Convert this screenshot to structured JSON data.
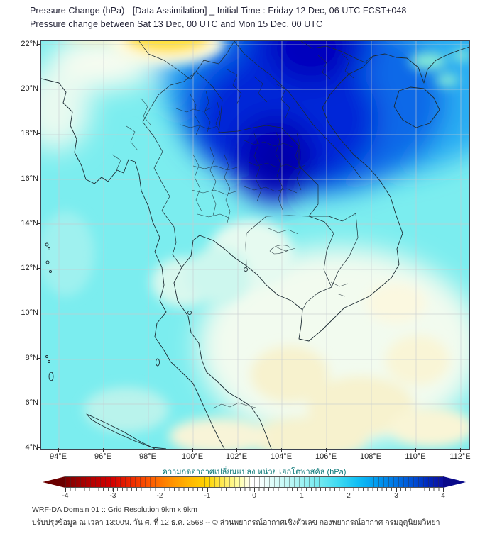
{
  "header": {
    "line1": "Pressure Change (hPa) - [Data Assimilation] _ Initial Time : Friday 12 Dec, 06 UTC FCST+048",
    "line2": "Pressure change between Sat 13 Dec, 00 UTC and Mon 15 Dec, 00 UTC"
  },
  "axes": {
    "lat_ticks": [
      "22°N",
      "20°N",
      "18°N",
      "16°N",
      "14°N",
      "12°N",
      "10°N",
      "8°N",
      "6°N",
      "4°N"
    ],
    "lon_ticks": [
      "94°E",
      "96°E",
      "98°E",
      "100°E",
      "102°E",
      "104°E",
      "106°E",
      "108°E",
      "110°E",
      "112°E"
    ]
  },
  "colorbar": {
    "label": "ความกดอากาศเปลี่ยนแปลง หน่วย เฮกโตพาสคัล (hPa)",
    "tick_labels": [
      "-4",
      "-3",
      "-2",
      "-1",
      "0",
      "1",
      "2",
      "3",
      "4"
    ]
  },
  "footer": {
    "line1": "WRF-DA Domain 01 :: Grid Resolution 9km x 9km",
    "line2": "ปรับปรุงข้อมูล ณ เวลา 13:00น. วัน ศ. ที่ 12 ธ.ค. 2568 -- © ส่วนพยากรณ์อากาศเชิงตัวเลข กองพยากรณ์อากาศ กรมอุตุนิยมวิทยา"
  },
  "colors": {
    "title_text": "#1f1f33",
    "colorbar_label_text": "#0d7a7a",
    "max_positive": "#0e0e9e",
    "max_negative": "#7f0000",
    "sea_background": "#7bedef"
  },
  "chart_data": {
    "type": "heatmap",
    "title": "Pressure Change (hPa) - [Data Assimilation] _ Initial Time : Friday 12 Dec, 06 UTC FCST+048",
    "subtitle": "Pressure change between Sat 13 Dec, 00 UTC and Mon 15 Dec, 00 UTC",
    "x": {
      "unit": "°E",
      "ticks": [
        94,
        96,
        98,
        100,
        102,
        104,
        106,
        108,
        110,
        112
      ],
      "range": [
        93.2,
        112.4
      ]
    },
    "y": {
      "unit": "°N",
      "ticks": [
        22,
        20,
        18,
        16,
        14,
        12,
        10,
        8,
        6,
        4
      ],
      "range": [
        4,
        22.2
      ]
    },
    "grid": true,
    "colorbar": {
      "label": "ความกดอากาศเปลี่ยนแปลง หน่วย เฮกโตพาสคัล (hPa)",
      "unit": "hPa",
      "ticks": [
        -4,
        -3,
        -2,
        -1,
        0,
        1,
        2,
        3,
        4
      ],
      "extend": "both",
      "palette_neg_to_pos": [
        "#7f0000",
        "#d40000",
        "#ff5a00",
        "#ffb400",
        "#ffee66",
        "#ffffff",
        "#a0f2f2",
        "#3cd9f2",
        "#009aef",
        "#0074e4",
        "#0028bc",
        "#0e0e9e"
      ]
    },
    "field_sample_points": [
      {
        "lon_e": 103.6,
        "lat_n": 16.8,
        "dP_hpa": 4.0
      },
      {
        "lon_e": 104.5,
        "lat_n": 21.5,
        "dP_hpa": 3.8
      },
      {
        "lon_e": 101.5,
        "lat_n": 18.0,
        "dP_hpa": 3.0
      },
      {
        "lon_e": 106.5,
        "lat_n": 19.0,
        "dP_hpa": 2.5
      },
      {
        "lon_e": 110.0,
        "lat_n": 21.0,
        "dP_hpa": 2.0
      },
      {
        "lon_e": 100.5,
        "lat_n": 14.5,
        "dP_hpa": 2.0
      },
      {
        "lon_e": 99.0,
        "lat_n": 22.0,
        "dP_hpa": -1.0
      },
      {
        "lon_e": 94.5,
        "lat_n": 20.5,
        "dP_hpa": 0.0
      },
      {
        "lon_e": 95.0,
        "lat_n": 12.0,
        "dP_hpa": 1.0
      },
      {
        "lon_e": 100.0,
        "lat_n": 8.0,
        "dP_hpa": 0.8
      },
      {
        "lon_e": 103.0,
        "lat_n": 9.0,
        "dP_hpa": 0.1
      },
      {
        "lon_e": 107.5,
        "lat_n": 6.0,
        "dP_hpa": -0.3
      },
      {
        "lon_e": 110.0,
        "lat_n": 8.0,
        "dP_hpa": -0.2
      },
      {
        "lon_e": 112.0,
        "lat_n": 15.0,
        "dP_hpa": 1.2
      }
    ]
  }
}
